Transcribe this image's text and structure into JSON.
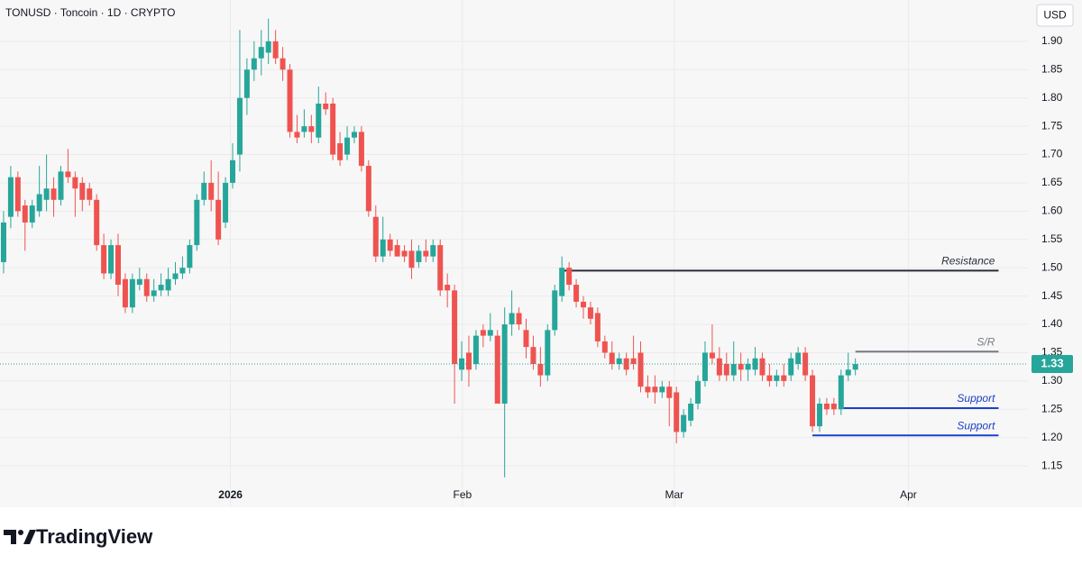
{
  "brand": "TradingView",
  "chart_data": {
    "type": "candlestick",
    "title": "TONUSD · Toncoin · 1D · CRYPTO",
    "y_label": "USD",
    "up_color": "#26a69a",
    "down_color": "#ef5350",
    "grid": true,
    "xlim": [
      -0.5,
      143.1
    ],
    "xticks": [
      {
        "value": 31.7,
        "label": "2026"
      },
      {
        "value": 64.1,
        "label": "Feb"
      },
      {
        "value": 93.7,
        "label": "Mar"
      },
      {
        "value": 126.4,
        "label": "Apr"
      }
    ],
    "ylim": [
      1.077,
      1.973
    ],
    "yticks": [
      1.15,
      {
        "value": 1.2,
        "label": "1.20"
      },
      1.25,
      {
        "value": 1.3,
        "label": "1.30"
      },
      1.35,
      {
        "value": 1.4,
        "label": "1.40"
      },
      1.45,
      {
        "value": 1.5,
        "label": "1.50"
      },
      1.55,
      {
        "value": 1.6,
        "label": "1.60"
      },
      1.65,
      {
        "value": 1.7,
        "label": "1.70"
      },
      1.75,
      {
        "value": 1.8,
        "label": "1.80"
      },
      1.85,
      {
        "value": 1.9,
        "label": "1.90"
      }
    ],
    "open": [
      1.51,
      1.59,
      1.66,
      1.61,
      1.58,
      1.6,
      1.62,
      1.64,
      1.62,
      1.67,
      1.66,
      1.65,
      1.64,
      1.62,
      1.54,
      1.49,
      1.54,
      1.48,
      1.43,
      1.47,
      1.48,
      1.45,
      1.46,
      1.46,
      1.48,
      1.49,
      1.5,
      1.54,
      1.62,
      1.65,
      1.62,
      1.58,
      1.65,
      1.7,
      1.8,
      1.85,
      1.87,
      1.88,
      1.9,
      1.87,
      1.85,
      1.74,
      1.74,
      1.75,
      1.73,
      1.79,
      1.79,
      1.72,
      1.7,
      1.73,
      1.74,
      1.68,
      1.59,
      1.52,
      1.55,
      1.54,
      1.53,
      1.53,
      1.51,
      1.53,
      1.52,
      1.54,
      1.47,
      1.46,
      1.32,
      1.35,
      1.33,
      1.39,
      1.38,
      1.38,
      1.26,
      1.4,
      1.42,
      1.39,
      1.36,
      1.33,
      1.31,
      1.39,
      1.45,
      1.5,
      1.47,
      1.44,
      1.43,
      1.42,
      1.37,
      1.35,
      1.33,
      1.34,
      1.34,
      1.35,
      1.29,
      1.29,
      1.28,
      1.29,
      1.28,
      1.21,
      1.23,
      1.26,
      1.3,
      1.35,
      1.34,
      1.33,
      1.31,
      1.33,
      1.32,
      1.32,
      1.34,
      1.31,
      1.3,
      1.31,
      1.31,
      1.33,
      1.35,
      1.31,
      1.22,
      1.26,
      1.26,
      1.25,
      1.31,
      1.32
    ],
    "high": [
      1.6,
      1.68,
      1.67,
      1.62,
      1.62,
      1.68,
      1.7,
      1.66,
      1.68,
      1.71,
      1.67,
      1.66,
      1.65,
      1.63,
      1.56,
      1.55,
      1.56,
      1.49,
      1.49,
      1.5,
      1.49,
      1.48,
      1.49,
      1.5,
      1.51,
      1.52,
      1.55,
      1.63,
      1.67,
      1.69,
      1.67,
      1.66,
      1.72,
      1.92,
      1.87,
      1.9,
      1.92,
      1.94,
      1.92,
      1.89,
      1.86,
      1.77,
      1.78,
      1.77,
      1.82,
      1.81,
      1.8,
      1.74,
      1.75,
      1.75,
      1.75,
      1.69,
      1.61,
      1.59,
      1.56,
      1.55,
      1.54,
      1.55,
      1.54,
      1.55,
      1.55,
      1.55,
      1.49,
      1.47,
      1.37,
      1.38,
      1.39,
      1.4,
      1.42,
      1.39,
      1.43,
      1.46,
      1.43,
      1.41,
      1.38,
      1.36,
      1.4,
      1.47,
      1.52,
      1.51,
      1.48,
      1.45,
      1.44,
      1.43,
      1.38,
      1.37,
      1.35,
      1.35,
      1.38,
      1.37,
      1.31,
      1.31,
      1.3,
      1.3,
      1.29,
      1.25,
      1.27,
      1.31,
      1.37,
      1.4,
      1.36,
      1.35,
      1.37,
      1.35,
      1.34,
      1.36,
      1.35,
      1.33,
      1.32,
      1.33,
      1.35,
      1.36,
      1.36,
      1.32,
      1.27,
      1.27,
      1.27,
      1.32,
      1.35,
      1.34
    ],
    "low": [
      1.49,
      1.57,
      1.59,
      1.53,
      1.57,
      1.59,
      1.6,
      1.59,
      1.61,
      1.65,
      1.59,
      1.6,
      1.61,
      1.53,
      1.48,
      1.48,
      1.45,
      1.42,
      1.42,
      1.46,
      1.44,
      1.44,
      1.45,
      1.45,
      1.47,
      1.48,
      1.49,
      1.53,
      1.61,
      1.6,
      1.54,
      1.57,
      1.64,
      1.67,
      1.77,
      1.83,
      1.84,
      1.86,
      1.86,
      1.83,
      1.73,
      1.72,
      1.73,
      1.72,
      1.72,
      1.77,
      1.69,
      1.68,
      1.69,
      1.72,
      1.67,
      1.59,
      1.51,
      1.51,
      1.52,
      1.52,
      1.51,
      1.48,
      1.5,
      1.51,
      1.51,
      1.45,
      1.43,
      1.26,
      1.3,
      1.29,
      1.32,
      1.36,
      1.37,
      1.26,
      1.13,
      1.38,
      1.39,
      1.34,
      1.32,
      1.29,
      1.3,
      1.38,
      1.44,
      1.46,
      1.43,
      1.41,
      1.4,
      1.36,
      1.34,
      1.32,
      1.32,
      1.31,
      1.32,
      1.28,
      1.27,
      1.26,
      1.27,
      1.22,
      1.19,
      1.2,
      1.22,
      1.25,
      1.29,
      1.33,
      1.3,
      1.3,
      1.3,
      1.3,
      1.3,
      1.31,
      1.3,
      1.29,
      1.29,
      1.29,
      1.3,
      1.32,
      1.3,
      1.21,
      1.21,
      1.24,
      1.24,
      1.24,
      1.3,
      1.31
    ],
    "close": [
      1.58,
      1.66,
      1.6,
      1.58,
      1.61,
      1.63,
      1.64,
      1.62,
      1.67,
      1.66,
      1.64,
      1.62,
      1.62,
      1.54,
      1.49,
      1.54,
      1.47,
      1.43,
      1.48,
      1.48,
      1.45,
      1.46,
      1.47,
      1.48,
      1.49,
      1.5,
      1.54,
      1.62,
      1.65,
      1.62,
      1.55,
      1.65,
      1.69,
      1.8,
      1.85,
      1.87,
      1.89,
      1.9,
      1.87,
      1.85,
      1.74,
      1.73,
      1.75,
      1.74,
      1.79,
      1.78,
      1.7,
      1.69,
      1.73,
      1.74,
      1.68,
      1.6,
      1.52,
      1.55,
      1.53,
      1.52,
      1.52,
      1.5,
      1.53,
      1.52,
      1.54,
      1.46,
      1.46,
      1.33,
      1.34,
      1.32,
      1.38,
      1.38,
      1.39,
      1.26,
      1.4,
      1.42,
      1.4,
      1.36,
      1.33,
      1.31,
      1.39,
      1.46,
      1.5,
      1.47,
      1.44,
      1.43,
      1.41,
      1.37,
      1.35,
      1.33,
      1.34,
      1.32,
      1.33,
      1.29,
      1.28,
      1.28,
      1.29,
      1.27,
      1.21,
      1.24,
      1.26,
      1.3,
      1.35,
      1.34,
      1.31,
      1.31,
      1.33,
      1.32,
      1.33,
      1.34,
      1.31,
      1.3,
      1.31,
      1.3,
      1.34,
      1.35,
      1.31,
      1.22,
      1.26,
      1.25,
      1.25,
      1.31,
      1.32,
      1.33
    ],
    "levels": [
      {
        "label": "Resistance",
        "value": 1.495,
        "x_start": 78,
        "x_end": 139,
        "color": "#2a2e39"
      },
      {
        "label": "S/R",
        "value": 1.352,
        "x_start": 119,
        "x_end": 139,
        "color": "#787b86"
      },
      {
        "label": "Support",
        "value": 1.252,
        "x_start": 117,
        "x_end": 139,
        "color": "#1e40c8"
      },
      {
        "label": "Support",
        "value": 1.204,
        "x_start": 113,
        "x_end": 139,
        "color": "#1e40c8"
      }
    ]
  }
}
